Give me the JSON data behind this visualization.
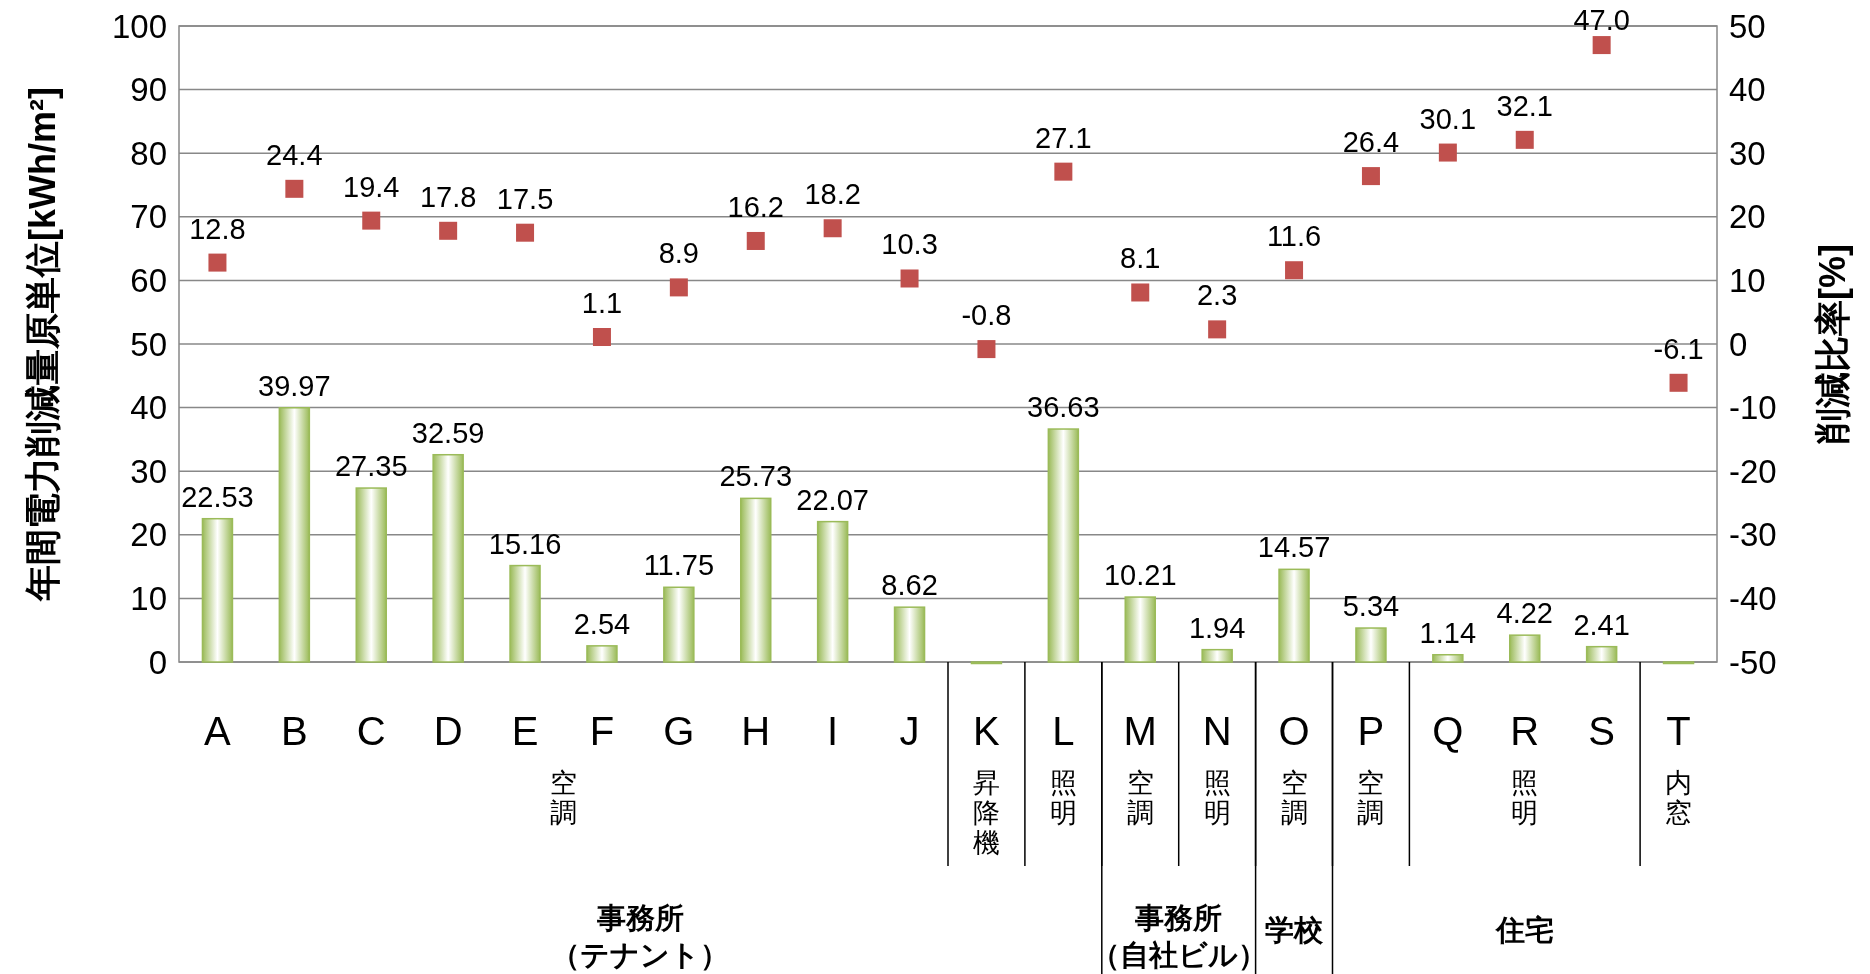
{
  "chart_data": {
    "type": "bar",
    "categories": [
      "A",
      "B",
      "C",
      "D",
      "E",
      "F",
      "G",
      "H",
      "I",
      "J",
      "K",
      "L",
      "M",
      "N",
      "O",
      "P",
      "Q",
      "R",
      "S",
      "T"
    ],
    "series": [
      {
        "color": "#9bbb59",
        "values": [
          22.53,
          39.97,
          27.35,
          32.59,
          15.16,
          2.54,
          11.75,
          25.73,
          22.07,
          8.62,
          0,
          36.63,
          10.21,
          1.94,
          14.57,
          5.34,
          1.14,
          4.22,
          2.41,
          0
        ],
        "value_labels": [
          "22.53",
          "39.97",
          "27.35",
          "32.59",
          "15.16",
          "2.54",
          "11.75",
          "25.73",
          "22.07",
          "8.62",
          null,
          "36.63",
          "10.21",
          "1.94",
          "14.57",
          "5.34",
          "1.14",
          "4.22",
          "2.41",
          null
        ]
      },
      {
        "type": "scatter",
        "axis": "y2",
        "marker": "square",
        "color": "#c0504d",
        "values": [
          12.8,
          24.4,
          19.4,
          17.8,
          17.5,
          1.1,
          8.9,
          16.2,
          18.2,
          10.3,
          -0.8,
          27.1,
          8.1,
          2.3,
          11.6,
          26.4,
          30.1,
          32.1,
          47.0,
          -6.1
        ],
        "value_labels": [
          "12.8",
          "24.4",
          "19.4",
          "17.8",
          "17.5",
          "1.1",
          "8.9",
          "16.2",
          "18.2",
          "10.3",
          "-0.8",
          "27.1",
          "8.1",
          "2.3",
          "11.6",
          "26.4",
          "30.1",
          "32.1",
          "47.0",
          "-6.1"
        ]
      }
    ],
    "ylabel": "年間電力削減量原単位[kWh/m²]",
    "y2label": "削減比率[%]",
    "ylim": [
      0,
      100
    ],
    "yticks": [
      0,
      10,
      20,
      30,
      40,
      50,
      60,
      70,
      80,
      90,
      100
    ],
    "y2lim": [
      -50,
      50
    ],
    "y2ticks": [
      -50,
      -40,
      -30,
      -20,
      -10,
      0,
      10,
      20,
      30,
      40,
      50
    ],
    "grid": "y",
    "annotations": [
      "空調",
      "昇降機",
      "照明",
      "空調",
      "照明",
      "空調",
      "空調",
      "照明",
      "内窓",
      "事務所",
      "（テナント）",
      "事務所",
      "（自社ビル）",
      "学校",
      "住宅"
    ]
  }
}
